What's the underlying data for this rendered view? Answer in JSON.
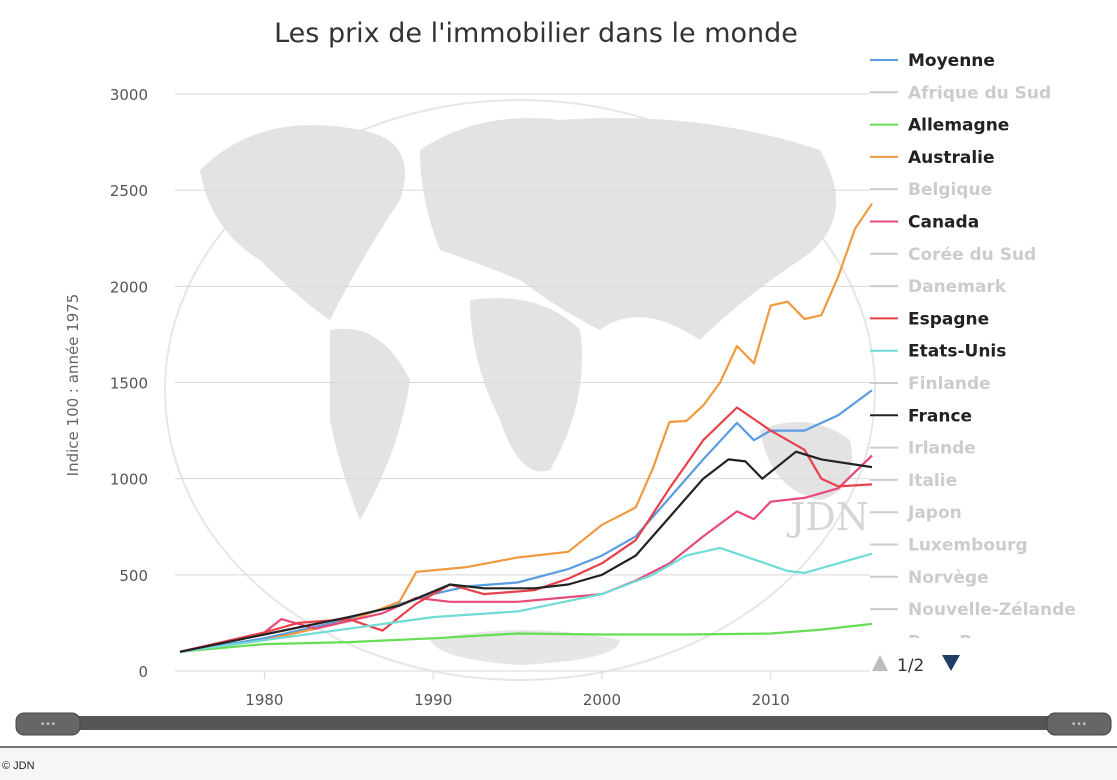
{
  "chart_data": {
    "type": "line",
    "title": "Les prix de l'immobilier dans le monde",
    "ylabel": "Indice 100 : année 1975",
    "xlabel": "",
    "xlim": [
      1975,
      2016
    ],
    "ylim": [
      0,
      3000
    ],
    "x_ticks": [
      1980,
      1990,
      2000,
      2010
    ],
    "y_ticks": [
      0,
      500,
      1000,
      1500,
      2000,
      2500,
      3000
    ],
    "grid": true,
    "legend_placement": "right",
    "watermark": "JDN",
    "series": [
      {
        "name": "Moyenne",
        "color": "#5b9be0",
        "data": [
          [
            1975,
            100
          ],
          [
            1980,
            170
          ],
          [
            1985,
            270
          ],
          [
            1990,
            400
          ],
          [
            1992,
            440
          ],
          [
            1995,
            460
          ],
          [
            1998,
            530
          ],
          [
            2000,
            600
          ],
          [
            2002,
            700
          ],
          [
            2004,
            900
          ],
          [
            2006,
            1100
          ],
          [
            2008,
            1290
          ],
          [
            2009,
            1200
          ],
          [
            2010,
            1250
          ],
          [
            2012,
            1250
          ],
          [
            2014,
            1330
          ],
          [
            2016,
            1460
          ]
        ]
      },
      {
        "name": "Allemagne",
        "color": "#66dd55",
        "data": [
          [
            1975,
            100
          ],
          [
            1980,
            140
          ],
          [
            1985,
            150
          ],
          [
            1990,
            170
          ],
          [
            1995,
            195
          ],
          [
            2000,
            190
          ],
          [
            2005,
            190
          ],
          [
            2010,
            195
          ],
          [
            2013,
            215
          ],
          [
            2016,
            245
          ]
        ]
      },
      {
        "name": "Australie",
        "color": "#f09a40",
        "data": [
          [
            1975,
            100
          ],
          [
            1980,
            160
          ],
          [
            1985,
            260
          ],
          [
            1988,
            360
          ],
          [
            1989,
            515
          ],
          [
            1992,
            540
          ],
          [
            1995,
            590
          ],
          [
            1998,
            620
          ],
          [
            2000,
            760
          ],
          [
            2002,
            850
          ],
          [
            2003,
            1050
          ],
          [
            2004,
            1295
          ],
          [
            2005,
            1300
          ],
          [
            2006,
            1380
          ],
          [
            2007,
            1500
          ],
          [
            2008,
            1690
          ],
          [
            2009,
            1600
          ],
          [
            2010,
            1900
          ],
          [
            2011,
            1920
          ],
          [
            2012,
            1830
          ],
          [
            2013,
            1850
          ],
          [
            2014,
            2050
          ],
          [
            2015,
            2300
          ],
          [
            2016,
            2430
          ]
        ]
      },
      {
        "name": "Canada",
        "color": "#e84a78",
        "data": [
          [
            1975,
            100
          ],
          [
            1980,
            200
          ],
          [
            1981,
            270
          ],
          [
            1983,
            220
          ],
          [
            1987,
            300
          ],
          [
            1989,
            380
          ],
          [
            1991,
            360
          ],
          [
            1995,
            360
          ],
          [
            2000,
            400
          ],
          [
            2002,
            470
          ],
          [
            2004,
            560
          ],
          [
            2006,
            700
          ],
          [
            2008,
            830
          ],
          [
            2009,
            790
          ],
          [
            2010,
            880
          ],
          [
            2012,
            900
          ],
          [
            2014,
            950
          ],
          [
            2016,
            1120
          ]
        ]
      },
      {
        "name": "Espagne",
        "color": "#e8414a",
        "data": [
          [
            1975,
            100
          ],
          [
            1980,
            200
          ],
          [
            1982,
            250
          ],
          [
            1985,
            270
          ],
          [
            1987,
            210
          ],
          [
            1989,
            350
          ],
          [
            1990,
            400
          ],
          [
            1991,
            450
          ],
          [
            1993,
            400
          ],
          [
            1996,
            420
          ],
          [
            1998,
            480
          ],
          [
            2000,
            560
          ],
          [
            2002,
            680
          ],
          [
            2004,
            950
          ],
          [
            2006,
            1200
          ],
          [
            2008,
            1370
          ],
          [
            2010,
            1250
          ],
          [
            2012,
            1150
          ],
          [
            2013,
            1000
          ],
          [
            2014,
            960
          ],
          [
            2016,
            970
          ]
        ]
      },
      {
        "name": "Etats-Unis",
        "color": "#6fdcd6",
        "data": [
          [
            1975,
            100
          ],
          [
            1980,
            160
          ],
          [
            1985,
            220
          ],
          [
            1990,
            280
          ],
          [
            1995,
            310
          ],
          [
            2000,
            400
          ],
          [
            2003,
            500
          ],
          [
            2005,
            600
          ],
          [
            2007,
            640
          ],
          [
            2009,
            580
          ],
          [
            2011,
            520
          ],
          [
            2012,
            510
          ],
          [
            2014,
            560
          ],
          [
            2016,
            610
          ]
        ]
      },
      {
        "name": "France",
        "color": "#222222",
        "data": [
          [
            1975,
            100
          ],
          [
            1980,
            190
          ],
          [
            1985,
            280
          ],
          [
            1988,
            340
          ],
          [
            1991,
            450
          ],
          [
            1993,
            430
          ],
          [
            1996,
            430
          ],
          [
            1998,
            450
          ],
          [
            2000,
            500
          ],
          [
            2002,
            600
          ],
          [
            2004,
            800
          ],
          [
            2006,
            1000
          ],
          [
            2007.5,
            1100
          ],
          [
            2008.5,
            1090
          ],
          [
            2009.5,
            1000
          ],
          [
            2011.5,
            1140
          ],
          [
            2013,
            1100
          ],
          [
            2016,
            1060
          ]
        ]
      }
    ],
    "legend": [
      {
        "name": "Moyenne",
        "visible": true,
        "color": "#5b9be0"
      },
      {
        "name": "Afrique du Sud",
        "visible": false
      },
      {
        "name": "Allemagne",
        "visible": true,
        "color": "#66dd55"
      },
      {
        "name": "Australie",
        "visible": true,
        "color": "#f09a40"
      },
      {
        "name": "Belgique",
        "visible": false
      },
      {
        "name": "Canada",
        "visible": true,
        "color": "#e84a78"
      },
      {
        "name": "Corée du Sud",
        "visible": false
      },
      {
        "name": "Danemark",
        "visible": false
      },
      {
        "name": "Espagne",
        "visible": true,
        "color": "#e8414a"
      },
      {
        "name": "Etats-Unis",
        "visible": true,
        "color": "#6fdcd6"
      },
      {
        "name": "Finlande",
        "visible": false
      },
      {
        "name": "France",
        "visible": true,
        "color": "#222222"
      },
      {
        "name": "Irlande",
        "visible": false
      },
      {
        "name": "Italie",
        "visible": false
      },
      {
        "name": "Japon",
        "visible": false
      },
      {
        "name": "Luxembourg",
        "visible": false
      },
      {
        "name": "Norvège",
        "visible": false
      },
      {
        "name": "Nouvelle-Zélande",
        "visible": false
      },
      {
        "name": "Pays-Bas",
        "visible": false
      }
    ],
    "legend_page": "1/2"
  },
  "footer": {
    "credit": "© JDN"
  }
}
